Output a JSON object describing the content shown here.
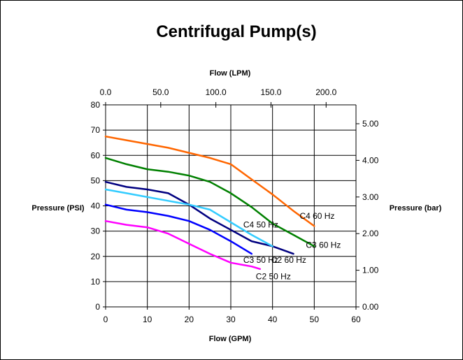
{
  "chart_data": {
    "type": "line",
    "title": "Centrifugal Pump(s)",
    "xlabel": "Flow (GPM)",
    "ylabel": "Pressure (PSI)",
    "x2label": "Flow (LPM)",
    "y2label": "Pressure (bar)",
    "xlim": [
      0,
      60
    ],
    "ylim": [
      0,
      80
    ],
    "x2lim": [
      0,
      227.1
    ],
    "y2lim": [
      0,
      5.515
    ],
    "grid": true,
    "legend": "none",
    "x_ticks": [
      "0",
      "10",
      "20",
      "30",
      "40",
      "50",
      "60"
    ],
    "y_ticks": [
      "0",
      "10",
      "20",
      "30",
      "40",
      "50",
      "60",
      "70",
      "80"
    ],
    "x2_ticks": [
      {
        "value": 0,
        "label": "0.0"
      },
      {
        "value": 50,
        "label": "50.0"
      },
      {
        "value": 100,
        "label": "100.0"
      },
      {
        "value": 150,
        "label": "150.0"
      },
      {
        "value": 200,
        "label": "200.0"
      }
    ],
    "y2_ticks": [
      {
        "value": 0,
        "label": "0.00"
      },
      {
        "value": 1,
        "label": "1.00"
      },
      {
        "value": 2,
        "label": "2.00"
      },
      {
        "value": 3,
        "label": "3.00"
      },
      {
        "value": 4,
        "label": "4.00"
      },
      {
        "value": 5,
        "label": "5.00"
      }
    ],
    "series": [
      {
        "name": "C4 60 Hz",
        "color": "#ff6600",
        "x": [
          0,
          5,
          10,
          15,
          20,
          25,
          30,
          35,
          40,
          45,
          50
        ],
        "y": [
          67.5,
          66,
          64.5,
          63,
          61,
          59,
          56.5,
          50.5,
          44.5,
          38,
          32
        ]
      },
      {
        "name": "C3 60 Hz",
        "color": "#008000",
        "x": [
          0,
          5,
          10,
          15,
          20,
          25,
          30,
          35,
          40,
          45,
          50
        ],
        "y": [
          59,
          56.5,
          54.5,
          53.5,
          52,
          49.5,
          45,
          39.5,
          33,
          28.5,
          24
        ]
      },
      {
        "name": "C4 50 Hz",
        "color": "#000080",
        "x": [
          0,
          5,
          10,
          15,
          20,
          25,
          30,
          35,
          40,
          45
        ],
        "y": [
          49.5,
          47.5,
          46.5,
          45,
          40.5,
          35,
          30.5,
          26,
          24,
          21
        ]
      },
      {
        "name": "C2 60 Hz",
        "color": "#33ccff",
        "x": [
          0,
          5,
          10,
          15,
          20,
          25,
          30,
          35,
          40
        ],
        "y": [
          46.5,
          45,
          43.5,
          42,
          40.5,
          38.5,
          33.5,
          28.5,
          24
        ]
      },
      {
        "name": "C3 50 Hz",
        "color": "#0000ff",
        "x": [
          0,
          5,
          10,
          15,
          20,
          25,
          30,
          35
        ],
        "y": [
          40.5,
          38.5,
          37.5,
          36,
          34,
          30.5,
          26,
          21
        ]
      },
      {
        "name": "C2 50 Hz",
        "color": "#ff00ff",
        "x": [
          0,
          5,
          10,
          15,
          20,
          25,
          30,
          35,
          37
        ],
        "y": [
          34,
          32.5,
          31.5,
          29,
          25,
          21,
          17.5,
          16,
          15
        ]
      }
    ],
    "annotations": [
      {
        "text": "C4 60 Hz",
        "x": 46.5,
        "y": 36
      },
      {
        "text": "C4 50 Hz",
        "x": 33,
        "y": 32.5
      },
      {
        "text": "C3 60 Hz",
        "x": 48,
        "y": 24.5
      },
      {
        "text": "C3 50 Hz",
        "x": 33,
        "y": 18.5
      },
      {
        "text": "C2 60 Hz",
        "x": 39.7,
        "y": 18.5
      },
      {
        "text": "C2 50 Hz",
        "x": 36,
        "y": 12
      }
    ]
  }
}
